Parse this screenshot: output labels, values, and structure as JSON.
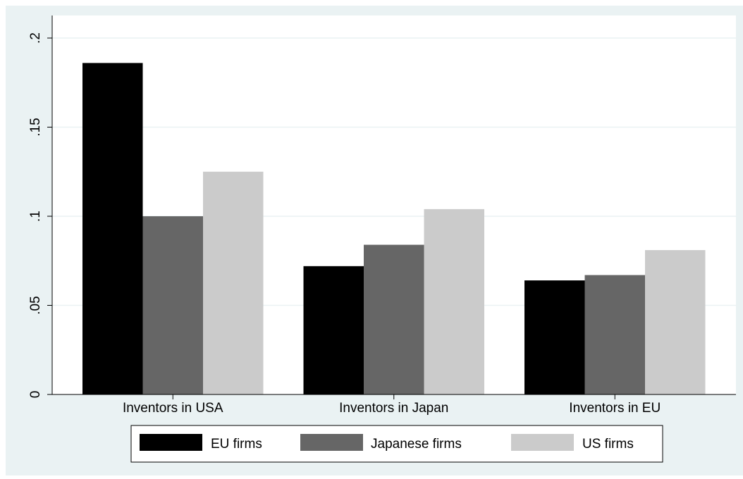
{
  "chart_data": {
    "type": "bar",
    "categories": [
      "Inventors in USA",
      "Inventors in Japan",
      "Inventors in EU"
    ],
    "series": [
      {
        "name": "EU firms",
        "color": "#000000",
        "values": [
          0.186,
          0.072,
          0.064
        ]
      },
      {
        "name": "Japanese firms",
        "color": "#666666",
        "values": [
          0.1,
          0.084,
          0.067
        ]
      },
      {
        "name": "US firms",
        "color": "#cbcbcb",
        "values": [
          0.125,
          0.104,
          0.081
        ]
      }
    ],
    "yticks": [
      {
        "value": 0,
        "label": "0"
      },
      {
        "value": 0.05,
        "label": ".05"
      },
      {
        "value": 0.1,
        "label": ".1"
      },
      {
        "value": 0.15,
        "label": ".15"
      },
      {
        "value": 0.2,
        "label": ".2"
      }
    ],
    "ylim": [
      0,
      0.2
    ],
    "grid": true,
    "legend_position": "bottom",
    "colors": {
      "outer_background": "#eaf2f3",
      "plot_background": "#ffffff",
      "grid": "#eaf2f3"
    }
  }
}
